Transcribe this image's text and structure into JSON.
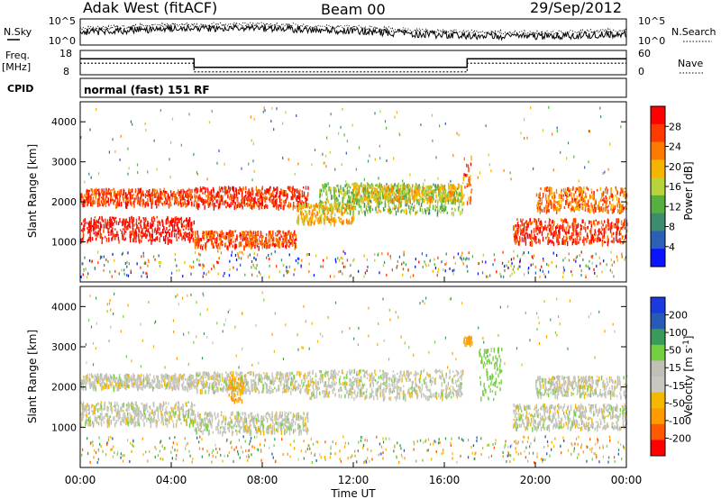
{
  "header": {
    "station": "Adak West (fitACF)",
    "beam": "Beam 00",
    "date": "29/Sep/2012"
  },
  "top_panels": {
    "nsky_label": "N.Sky",
    "nsky_ticks": [
      "10^5",
      "10^0"
    ],
    "nsearch_label": "N.Search",
    "nsearch_ticks": [
      "10^5",
      "10^0"
    ],
    "freq_label": "Freq.",
    "freq_unit": "[MHz]",
    "freq_ticks": [
      "18",
      "8"
    ],
    "nave_label": "Nave",
    "nave_ticks": [
      "60",
      "0"
    ],
    "cpid_label": "CPID",
    "cpid_text": "normal (fast) 151 RF"
  },
  "colors": {
    "power": [
      "#0a14ff",
      "#2b5fb8",
      "#3c8c6e",
      "#56b040",
      "#b8d23a",
      "#f5b400",
      "#ff7a00",
      "#ff3a00",
      "#ff0000"
    ],
    "velocity": [
      "#ff0000",
      "#ff5a00",
      "#ff9a00",
      "#f5b800",
      "#c8c8c0",
      "#c0c0b8",
      "#74d040",
      "#3a9a5a",
      "#2a5ab8",
      "#1a3ae0"
    ]
  },
  "chart_data": [
    {
      "type": "heatmap",
      "panel": "power",
      "ylabel": "Slant Range [km]",
      "ylim": [
        0,
        4500
      ],
      "yticks": [
        1000,
        2000,
        3000,
        4000
      ],
      "xlim_hours": [
        0,
        24
      ],
      "colorbar_label": "Power [dB]",
      "colorbar_range": [
        0,
        32
      ],
      "colorbar_ticks": [
        "4",
        "8",
        "12",
        "16",
        "20",
        "24",
        "28"
      ],
      "bands": [
        {
          "t0": 0.0,
          "t1": 5.0,
          "r0": 1050,
          "r1": 1650,
          "value": 30
        },
        {
          "t0": 0.0,
          "t1": 5.0,
          "r0": 1950,
          "r1": 2350,
          "value": 27
        },
        {
          "t0": 5.0,
          "t1": 9.5,
          "r0": 900,
          "r1": 1300,
          "value": 26
        },
        {
          "t0": 5.0,
          "t1": 10.0,
          "r0": 1900,
          "r1": 2400,
          "value": 28
        },
        {
          "t0": 9.5,
          "t1": 12.0,
          "r0": 1500,
          "r1": 2000,
          "value": 20
        },
        {
          "t0": 10.5,
          "t1": 16.8,
          "r0": 1750,
          "r1": 2500,
          "value": 14
        },
        {
          "t0": 12.0,
          "t1": 16.8,
          "r0": 2050,
          "r1": 2450,
          "value": 18
        },
        {
          "t0": 16.8,
          "t1": 17.2,
          "r0": 2000,
          "r1": 3200,
          "value": 24
        },
        {
          "t0": 19.0,
          "t1": 24.0,
          "r0": 1000,
          "r1": 1600,
          "value": 28
        },
        {
          "t0": 20.0,
          "t1": 24.0,
          "r0": 1800,
          "r1": 2400,
          "value": 24
        }
      ]
    },
    {
      "type": "heatmap",
      "panel": "velocity",
      "ylabel": "Slant Range [km]",
      "ylim": [
        0,
        4500
      ],
      "yticks": [
        1000,
        2000,
        3000,
        4000
      ],
      "xlim_hours": [
        0,
        24
      ],
      "xlabel": "Time UT",
      "xticks": [
        "00:00",
        "04:00",
        "08:00",
        "12:00",
        "16:00",
        "20:00",
        "00:00"
      ],
      "colorbar_label": "Velocity [m s^-1]",
      "colorbar_ticks": [
        "200",
        "100",
        "50",
        "15",
        "-15",
        "-50",
        "-100",
        "-200"
      ],
      "bands": [
        {
          "t0": 0.0,
          "t1": 5.0,
          "r0": 1100,
          "r1": 1650,
          "value": 0
        },
        {
          "t0": 0.0,
          "t1": 5.0,
          "r0": 2000,
          "r1": 2350,
          "value": 0
        },
        {
          "t0": 5.0,
          "t1": 10.0,
          "r0": 900,
          "r1": 1400,
          "value": 0
        },
        {
          "t0": 5.0,
          "t1": 10.0,
          "r0": 1900,
          "r1": 2400,
          "value": 0
        },
        {
          "t0": 6.5,
          "t1": 7.2,
          "r0": 1700,
          "r1": 2300,
          "value": -60
        },
        {
          "t0": 10.0,
          "t1": 16.8,
          "r0": 1750,
          "r1": 2450,
          "value": 0
        },
        {
          "t0": 16.8,
          "t1": 17.2,
          "r0": 3100,
          "r1": 3300,
          "value": -60
        },
        {
          "t0": 17.5,
          "t1": 18.5,
          "r0": 1700,
          "r1": 3000,
          "value": 30
        },
        {
          "t0": 19.0,
          "t1": 24.0,
          "r0": 1000,
          "r1": 1600,
          "value": 0
        },
        {
          "t0": 20.0,
          "t1": 24.0,
          "r0": 1800,
          "r1": 2300,
          "value": 0
        }
      ]
    }
  ],
  "freq_series": {
    "t": [
      0,
      5,
      5,
      17,
      17,
      24
    ],
    "mhz": [
      15,
      15,
      11,
      11,
      15,
      15
    ]
  }
}
